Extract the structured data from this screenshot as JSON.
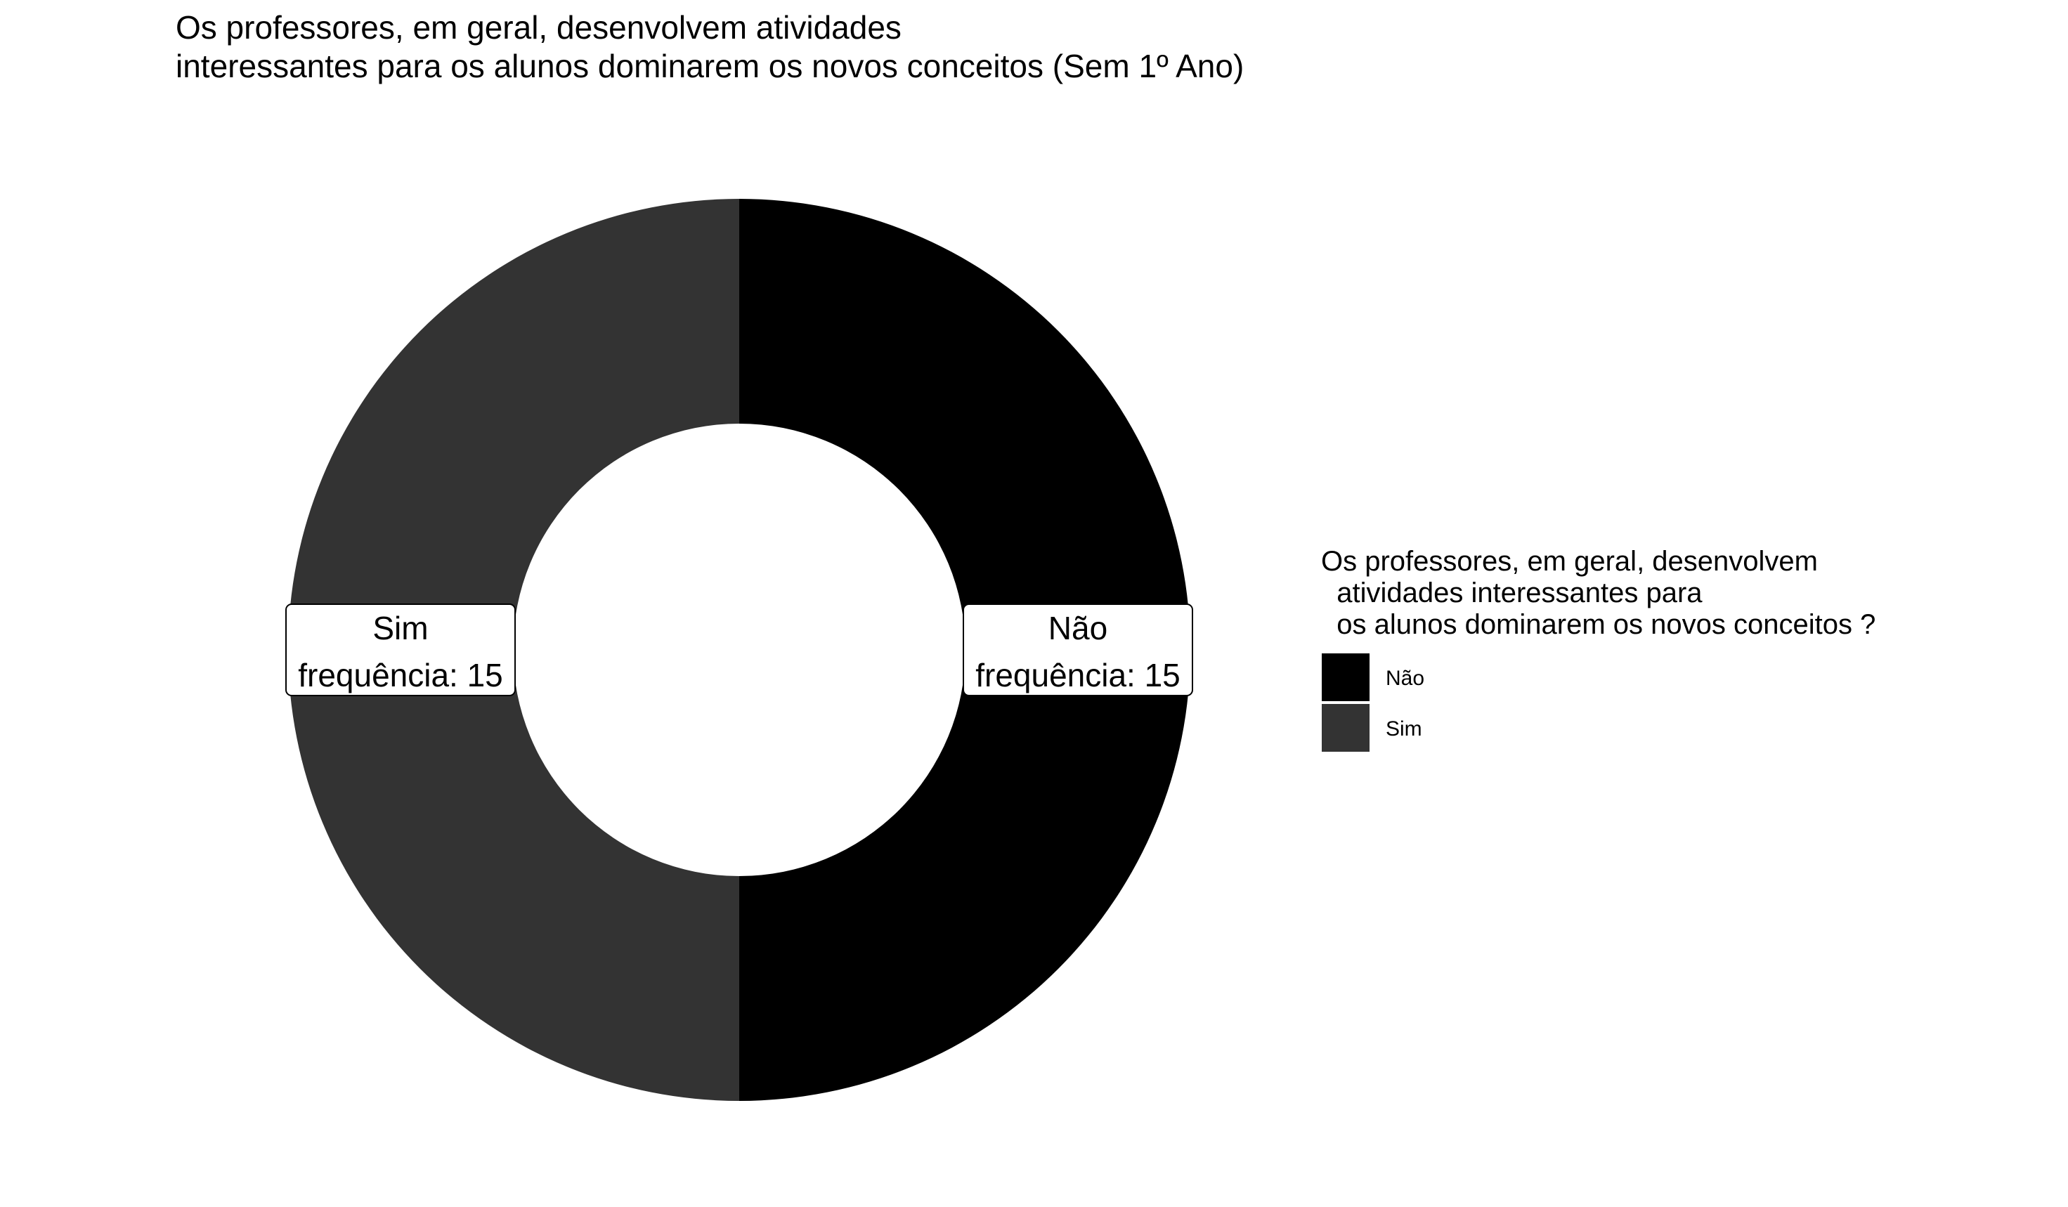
{
  "chart_data": {
    "type": "pie",
    "donut": true,
    "title": [
      "Os professores, em geral, desenvolvem atividades",
      "interessantes para os alunos dominarem os novos conceitos (Sem 1º Ano)"
    ],
    "categories": [
      "Não",
      "Sim"
    ],
    "values": [
      15,
      15
    ],
    "colors": [
      "#000000",
      "#333333"
    ],
    "data_labels": [
      {
        "category": "Não",
        "value_text": "frequência: 15"
      },
      {
        "category": "Sim",
        "value_text": "frequência: 15"
      }
    ],
    "legend": {
      "title": [
        "Os professores, em geral, desenvolvem",
        "  atividades interessantes para",
        "  os alunos dominarem os novos conceitos ?"
      ],
      "position": "right"
    }
  }
}
